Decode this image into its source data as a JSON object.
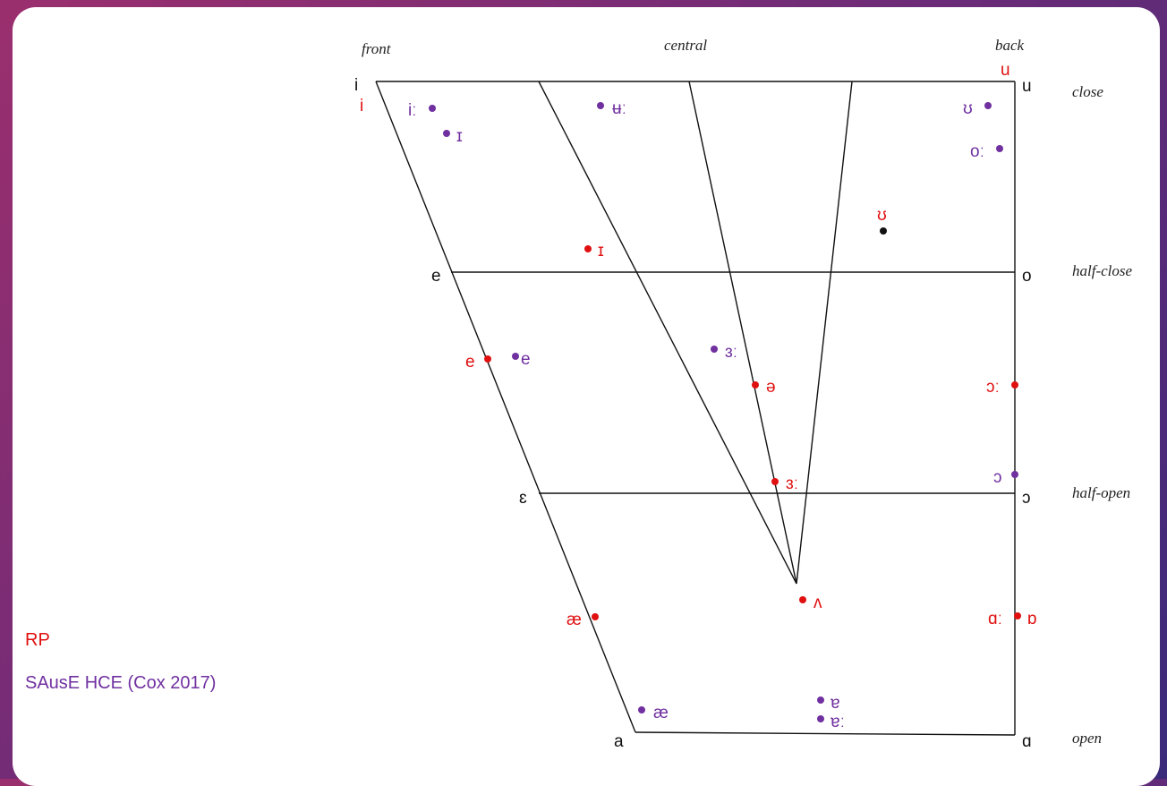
{
  "colors": {
    "rp": "#e01010",
    "sause": "#7030a0",
    "ref": "#111111"
  },
  "axis_labels": {
    "front": "front",
    "central": "central",
    "back": "back",
    "close": "close",
    "half_close": "half-close",
    "half_open": "half-open",
    "open": "open"
  },
  "legend": {
    "rp": "RP",
    "sause": "SAusE HCE (Cox 2017)"
  },
  "cardinal_vowels": {
    "i": "i",
    "u": "u",
    "e": "e",
    "o": "o",
    "epsilon": "ɛ",
    "open_o": "ɔ",
    "a": "a",
    "alpha": "ɑ"
  },
  "rp_vowels": {
    "i": "i",
    "u": "u",
    "short_i": "ɪ",
    "e": "e",
    "schwa": "ə",
    "long_er": "ɜː",
    "long_aw": "ɔː",
    "ae": "æ",
    "wedge": "ʌ",
    "long_ah": "ɑː",
    "short_o": "ɒ"
  },
  "sause_vowels": {
    "long_i": "iː",
    "short_i": "ɪ",
    "long_u": "ʉː",
    "short_u": "ʊ",
    "long_o": "oː",
    "e": "e",
    "long_er": "ɜː",
    "open_o": "ɔ",
    "ae": "æ",
    "turned_a": "ɐ",
    "long_turned_a": "ɐː"
  },
  "ref_vowels": {
    "upsilon": "ʊ"
  }
}
